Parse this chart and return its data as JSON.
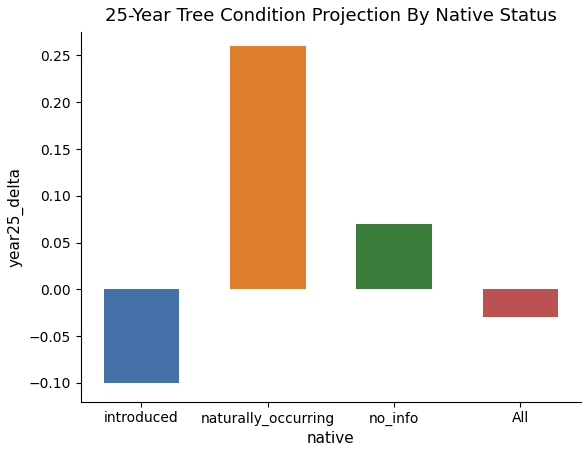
{
  "categories": [
    "introduced",
    "naturally_occurring",
    "no_info",
    "All"
  ],
  "values": [
    -0.1,
    0.26,
    0.07,
    -0.03
  ],
  "bar_colors": [
    "#4472a8",
    "#e07f2e",
    "#3a7d3a",
    "#bc5151"
  ],
  "title": "25-Year Tree Condition Projection By Native Status",
  "xlabel": "native",
  "ylabel": "year25_delta",
  "ylim": [
    -0.12,
    0.275
  ],
  "yticks": [
    -0.1,
    -0.05,
    0.0,
    0.05,
    0.1,
    0.15,
    0.2,
    0.25
  ],
  "title_fontsize": 13,
  "label_fontsize": 11,
  "tick_fontsize": 10,
  "background_color": "#ffffff",
  "figsize": [
    5.88,
    4.53
  ],
  "dpi": 100
}
